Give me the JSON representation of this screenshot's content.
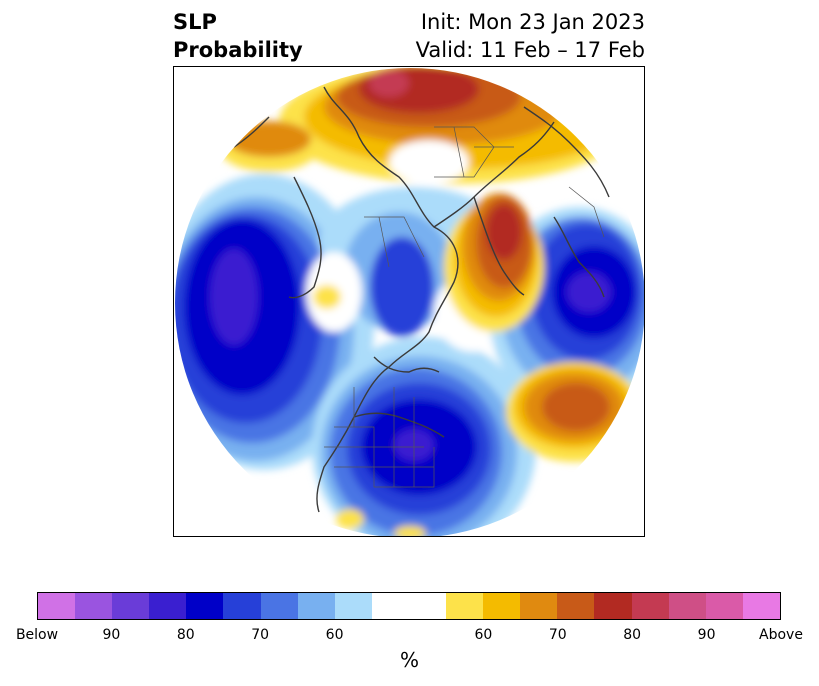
{
  "header": {
    "title_line1": "SLP",
    "title_line2": "Probability",
    "init_text": "Init: Mon 23 Jan 2023",
    "valid_text": "Valid: 11 Feb – 17 Feb"
  },
  "colorbar": {
    "colors": [
      "#d071e6",
      "#9a54e0",
      "#6a3cd8",
      "#3a1fd0",
      "#0000c8",
      "#2640d8",
      "#4a74e4",
      "#78b0f0",
      "#abdcfa",
      "#ffffff",
      "#ffffff",
      "#fde24a",
      "#f4bb00",
      "#e08a10",
      "#c85a18",
      "#b22a22",
      "#c43a52",
      "#cf4f86",
      "#da5aa8",
      "#e879e4"
    ],
    "tick_labels": [
      "Below",
      "90",
      "80",
      "70",
      "60",
      "60",
      "70",
      "80",
      "90",
      "Above"
    ],
    "unit_label": "%"
  }
}
